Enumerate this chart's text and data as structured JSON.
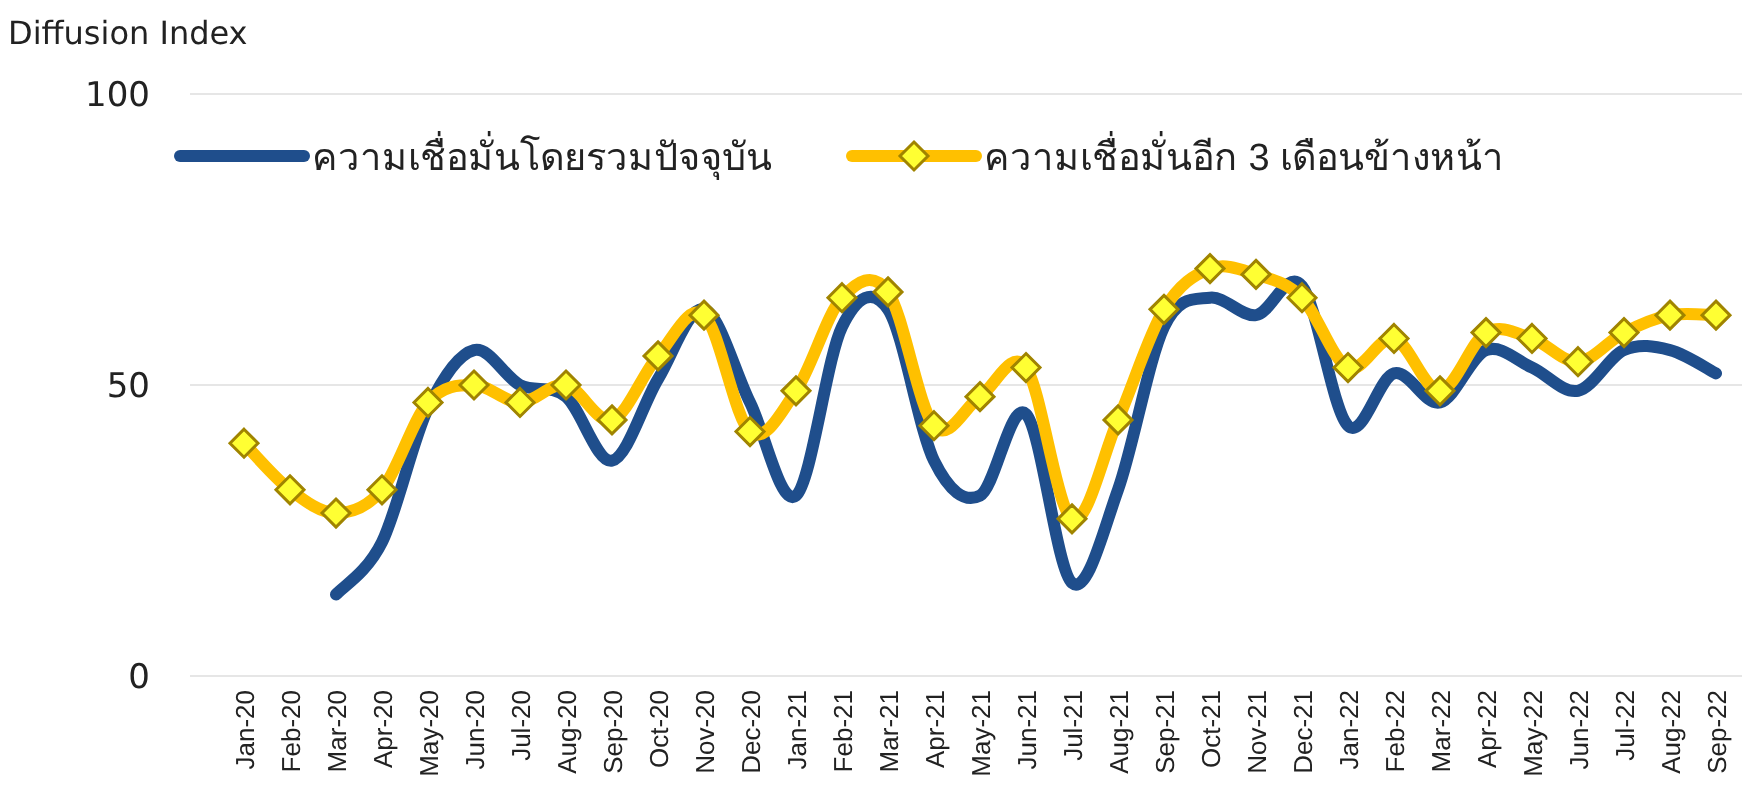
{
  "chart_data": {
    "type": "line",
    "ylabel": "Diffusion Index",
    "categories": [
      "Jan-20",
      "Feb-20",
      "Mar-20",
      "Apr-20",
      "May-20",
      "Jun-20",
      "Jul-20",
      "Aug-20",
      "Sep-20",
      "Oct-20",
      "Nov-20",
      "Dec-20",
      "Jan-21",
      "Feb-21",
      "Mar-21",
      "Apr-21",
      "May-21",
      "Jun-21",
      "Jul-21",
      "Aug-21",
      "Sep-21",
      "Oct-21",
      "Nov-21",
      "Dec-21",
      "Jan-22",
      "Feb-22",
      "Mar-22",
      "Apr-22",
      "May-22",
      "Jun-22",
      "Jul-22",
      "Aug-22",
      "Sep-22"
    ],
    "series": [
      {
        "name": "ความเชื่อมั่นโดยรวมปัจจุบัน",
        "color": "#1f4e8c",
        "marker": "none",
        "values": [
          null,
          null,
          14,
          23,
          46,
          56,
          50,
          48,
          37,
          51,
          63,
          47,
          31,
          60,
          63,
          37,
          31,
          45,
          16,
          32,
          60,
          65,
          62,
          67,
          43,
          52,
          47,
          56,
          53,
          49,
          56,
          56,
          52
        ]
      },
      {
        "name": "ความเชื่อมั่นอีก 3 เดือนข้างหน้า",
        "color": "#ffc000",
        "marker": "diamond",
        "values": [
          40,
          32,
          28,
          32,
          47,
          50,
          47,
          50,
          44,
          55,
          62,
          42,
          49,
          65,
          66,
          43,
          48,
          53,
          27,
          44,
          63,
          70,
          69,
          65,
          53,
          58,
          49,
          59,
          58,
          54,
          59,
          62,
          62
        ]
      }
    ],
    "ylim": [
      0,
      100
    ],
    "yticks": [
      0,
      50,
      100
    ],
    "grid": "y",
    "legend": "top"
  }
}
